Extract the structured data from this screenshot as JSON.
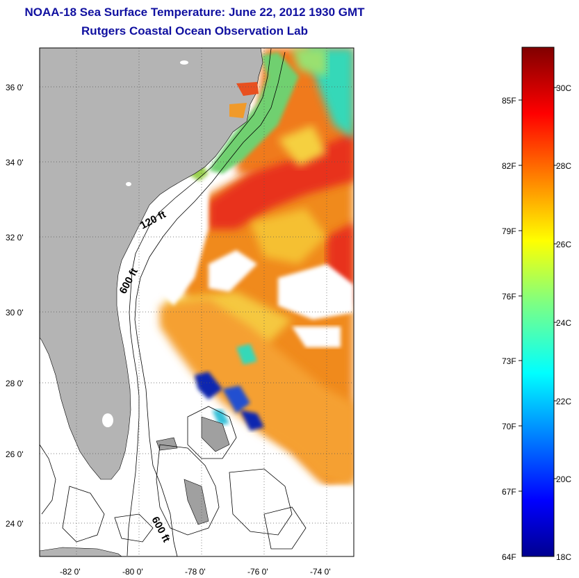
{
  "title": {
    "line1": "NOAA-18 Sea Surface Temperature:  June 22, 2012 1930 GMT",
    "line2": "Rutgers Coastal Ocean Observation Lab"
  },
  "map": {
    "lat_labels": [
      "36 0'",
      "34 0'",
      "32 0'",
      "30 0'",
      "28 0'",
      "26 0'",
      "24 0'"
    ],
    "lon_labels": [
      "-82 0'",
      "-80 0'",
      "-78 0'",
      "-76 0'",
      "-74 0'"
    ],
    "contour_labels": [
      "120 ft",
      "600 ft",
      "600 ft"
    ],
    "colors": {
      "land": "#b4b4b4",
      "cloud": "#ffffff",
      "warm": "#f08a1e",
      "hot": "#e8301a",
      "mild": "#f5c030",
      "cool": "#36d8b8",
      "cold": "#1028b0"
    }
  },
  "colorbar": {
    "fahrenheit": [
      "85F",
      "82F",
      "79F",
      "76F",
      "73F",
      "70F",
      "67F",
      "64F"
    ],
    "celsius": [
      "30C",
      "28C",
      "26C",
      "24C",
      "22C",
      "20C",
      "18C"
    ]
  }
}
